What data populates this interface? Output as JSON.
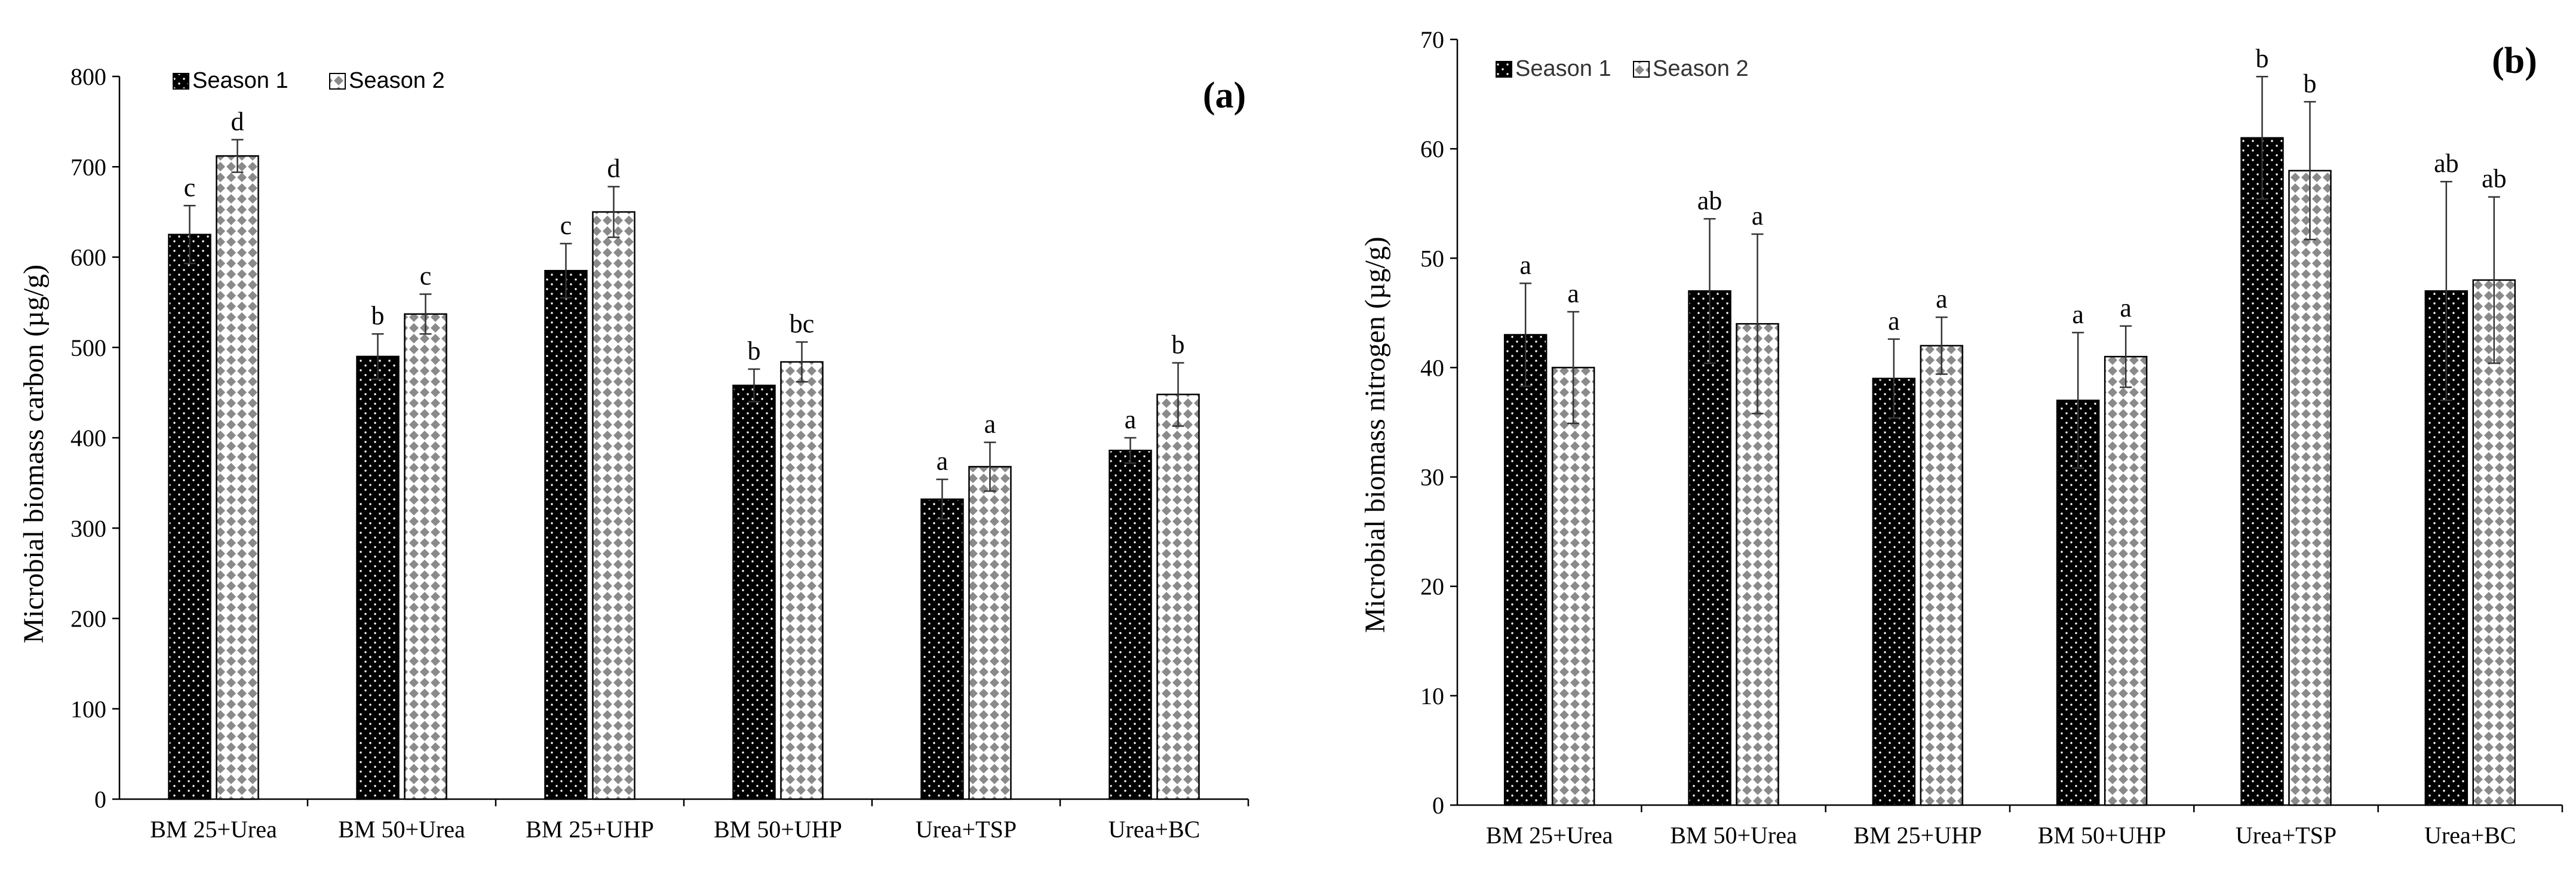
{
  "chart_data": [
    {
      "type": "bar",
      "panel_label": "(a)",
      "title": "",
      "xlabel": "",
      "ylabel": "Microbial biomass carbon (µg/g)",
      "ylim": [
        0,
        800
      ],
      "yticks": [
        0,
        100,
        200,
        300,
        400,
        500,
        600,
        700,
        800
      ],
      "grid": false,
      "legend": "top-left",
      "categories": [
        "BM 25+Urea",
        "BM 50+Urea",
        "BM 25+UHP",
        "BM 50+UHP",
        "Urea+TSP",
        "Urea+BC"
      ],
      "series": [
        {
          "name": "Season 1",
          "pattern": "black-dotted",
          "values": [
            625,
            490,
            585,
            458,
            332,
            386
          ],
          "errors": [
            32,
            25,
            30,
            18,
            22,
            14
          ],
          "letters": [
            "c",
            "b",
            "c",
            "b",
            "a",
            "a"
          ]
        },
        {
          "name": "Season 2",
          "pattern": "white-checkered",
          "values": [
            712,
            537,
            650,
            484,
            368,
            448
          ],
          "errors": [
            18,
            22,
            28,
            22,
            27,
            35
          ],
          "letters": [
            "d",
            "c",
            "d",
            "bc",
            "a",
            "b"
          ]
        }
      ]
    },
    {
      "type": "bar",
      "panel_label": "(b)",
      "title": "",
      "xlabel": "",
      "ylabel": "Microbial biomass nitrogen (µg/g)",
      "ylim": [
        0,
        70
      ],
      "yticks": [
        0,
        10,
        20,
        30,
        40,
        50,
        60,
        70
      ],
      "grid": false,
      "legend": "top-left",
      "categories": [
        "BM 25+Urea",
        "BM 50+Urea",
        "BM 25+UHP",
        "BM 50+UHP",
        "Urea+TSP",
        "Urea+BC"
      ],
      "series": [
        {
          "name": "Season 1",
          "pattern": "black-dotted",
          "values": [
            43,
            47,
            39,
            37,
            61,
            47
          ],
          "errors": [
            4.7,
            6.6,
            3.6,
            6.2,
            5.6,
            10
          ],
          "letters": [
            "a",
            "ab",
            "a",
            "a",
            "b",
            "ab"
          ]
        },
        {
          "name": "Season 2",
          "pattern": "white-checkered",
          "values": [
            40,
            44,
            42,
            41,
            58,
            48
          ],
          "errors": [
            5.1,
            8.2,
            2.6,
            2.8,
            6.3,
            7.6
          ],
          "letters": [
            "a",
            "a",
            "a",
            "a",
            "b",
            "ab"
          ]
        }
      ]
    }
  ],
  "colors": {
    "axis": "#000000",
    "season1_fill": "#000000",
    "season1_dot": "#ffffff",
    "season2_fill": "#ffffff",
    "season2_check": "#8a8a8a",
    "text": "#000000"
  }
}
